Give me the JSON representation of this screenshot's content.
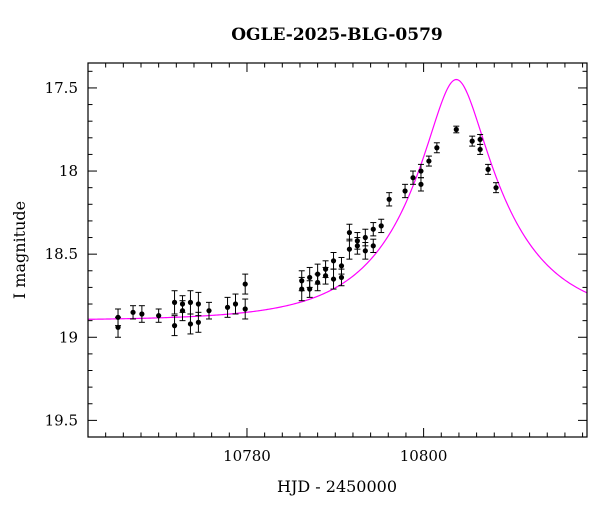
{
  "chart_data": {
    "type": "scatter",
    "title": "OGLE-2025-BLG-0579",
    "xlabel": "HJD - 2450000",
    "ylabel": "I magnitude",
    "xlim": [
      10762,
      10818.5
    ],
    "ylim": [
      19.6,
      17.35
    ],
    "y_inverted": true,
    "grid": false,
    "x_major_ticks": [
      10780,
      10800
    ],
    "x_major_labels": [
      "10780",
      "10800"
    ],
    "y_major_ticks": [
      17.5,
      18,
      18.5,
      19,
      19.5
    ],
    "y_major_labels": [
      "17.5",
      "18",
      "18.5",
      "19",
      "19.5"
    ],
    "colors": {
      "points": "#000000",
      "model": "#ff00ff",
      "axes": "#000000"
    },
    "series": [
      {
        "kind": "points_with_errorbars",
        "x": [
          10765.4,
          10765.4,
          10767.1,
          10768.1,
          10770.0,
          10771.8,
          10771.8,
          10772.7,
          10772.7,
          10773.6,
          10773.6,
          10774.5,
          10774.5,
          10775.7,
          10777.8,
          10778.7,
          10779.8,
          10779.8,
          10786.2,
          10786.2,
          10787.1,
          10787.1,
          10788.0,
          10788.0,
          10788.9,
          10788.9,
          10789.8,
          10789.8,
          10790.7,
          10790.7,
          10791.6,
          10791.6,
          10792.5,
          10792.5,
          10793.4,
          10793.4,
          10794.3,
          10794.3,
          10795.2,
          10796.1,
          10797.9,
          10798.8,
          10799.7,
          10799.7,
          10800.6,
          10801.5,
          10803.7,
          10805.5,
          10806.4,
          10806.4,
          10807.3,
          10808.2
        ],
        "y": [
          18.88,
          18.94,
          18.85,
          18.86,
          18.87,
          18.79,
          18.93,
          18.8,
          18.84,
          18.79,
          18.92,
          18.8,
          18.91,
          18.84,
          18.82,
          18.8,
          18.83,
          18.68,
          18.71,
          18.66,
          18.71,
          18.64,
          18.67,
          18.62,
          18.63,
          18.59,
          18.65,
          18.54,
          18.64,
          18.57,
          18.47,
          18.37,
          18.45,
          18.42,
          18.48,
          18.4,
          18.45,
          18.35,
          18.33,
          18.17,
          18.12,
          18.04,
          18.08,
          18.0,
          17.94,
          17.86,
          17.75,
          17.82,
          17.87,
          17.81,
          17.99,
          18.1
        ],
        "err": [
          0.05,
          0.06,
          0.04,
          0.05,
          0.04,
          0.07,
          0.06,
          0.05,
          0.06,
          0.07,
          0.06,
          0.07,
          0.06,
          0.05,
          0.06,
          0.06,
          0.06,
          0.06,
          0.07,
          0.06,
          0.05,
          0.06,
          0.05,
          0.06,
          0.05,
          0.05,
          0.06,
          0.05,
          0.05,
          0.05,
          0.06,
          0.05,
          0.05,
          0.05,
          0.05,
          0.05,
          0.04,
          0.04,
          0.04,
          0.04,
          0.04,
          0.04,
          0.04,
          0.04,
          0.03,
          0.03,
          0.02,
          0.03,
          0.03,
          0.03,
          0.03,
          0.03
        ]
      },
      {
        "kind": "model_curve",
        "t0": 10803.7,
        "u0": 0.27,
        "tE": 11.0,
        "baseline_mag": 18.9
      }
    ]
  }
}
